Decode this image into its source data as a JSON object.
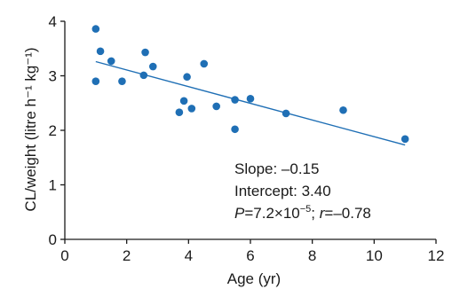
{
  "chart_data": {
    "type": "scatter",
    "xlabel": "Age (yr)",
    "ylabel": "CL/weight (litre h⁻¹ kg⁻¹)",
    "xlim": [
      0,
      12
    ],
    "ylim": [
      0,
      4
    ],
    "xticks": [
      0,
      2,
      4,
      6,
      8,
      10,
      12
    ],
    "yticks": [
      0,
      1,
      2,
      3,
      4
    ],
    "grid": false,
    "point_color": "#1f6fb5",
    "line_color": "#1f6fb5",
    "points": [
      {
        "x": 1.0,
        "y": 3.86
      },
      {
        "x": 1.0,
        "y": 2.9
      },
      {
        "x": 1.15,
        "y": 3.45
      },
      {
        "x": 1.5,
        "y": 3.27
      },
      {
        "x": 1.85,
        "y": 2.9
      },
      {
        "x": 2.55,
        "y": 3.01
      },
      {
        "x": 2.6,
        "y": 3.43
      },
      {
        "x": 2.85,
        "y": 3.17
      },
      {
        "x": 3.7,
        "y": 2.33
      },
      {
        "x": 3.85,
        "y": 2.54
      },
      {
        "x": 3.95,
        "y": 2.98
      },
      {
        "x": 4.1,
        "y": 2.4
      },
      {
        "x": 4.5,
        "y": 3.22
      },
      {
        "x": 4.9,
        "y": 2.44
      },
      {
        "x": 5.5,
        "y": 2.56
      },
      {
        "x": 5.5,
        "y": 2.02
      },
      {
        "x": 6.0,
        "y": 2.58
      },
      {
        "x": 7.15,
        "y": 2.31
      },
      {
        "x": 9.0,
        "y": 2.37
      },
      {
        "x": 11.0,
        "y": 1.84
      }
    ],
    "regression_line": {
      "x": [
        1.0,
        11.0
      ],
      "y": [
        3.26,
        1.73
      ]
    },
    "annotations": {
      "slope": "Slope: –0.15",
      "intercept": "Intercept: 3.40",
      "p_italic": "P",
      "p_rest": "=7.2×10",
      "p_exp": "−5",
      "r_sep": "; ",
      "r_italic": "r",
      "r_rest": "=–0.78"
    }
  }
}
